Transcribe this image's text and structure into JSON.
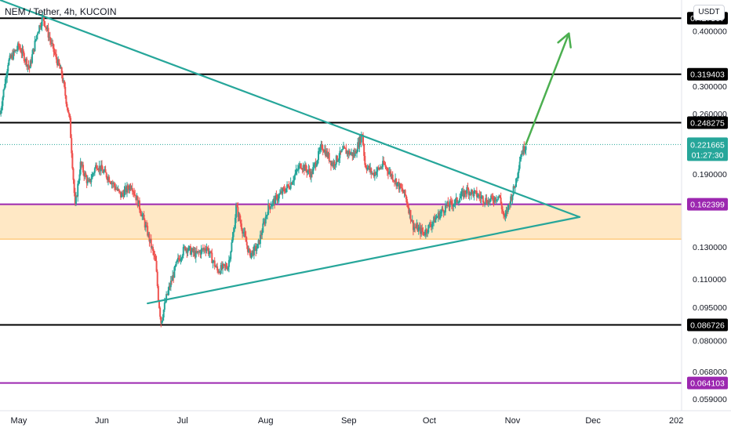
{
  "chart_data": {
    "type": "candlestick",
    "title": "NEM / Tether, 4h, KUCOIN",
    "currency": "USDT",
    "price_axis_labels": [
      "0.400000",
      "0.300000",
      "0.260000",
      "0.190000",
      "0.130000",
      "0.110000",
      "0.095000",
      "0.080000",
      "0.068000",
      "0.059000"
    ],
    "time_axis_labels": [
      {
        "label": "May",
        "date": "2021-05-01"
      },
      {
        "label": "Jun",
        "date": "2021-06-01"
      },
      {
        "label": "Jul",
        "date": "2021-07-01"
      },
      {
        "label": "Aug",
        "date": "2021-08-01"
      },
      {
        "label": "Sep",
        "date": "2021-09-01"
      },
      {
        "label": "Oct",
        "date": "2021-10-01"
      },
      {
        "label": "Nov",
        "date": "2021-11-01"
      },
      {
        "label": "Dec",
        "date": "2021-12-01"
      },
      {
        "label": "202",
        "date": "2022-01-01"
      }
    ],
    "x_range": [
      "2021-04-24",
      "2022-01-03"
    ],
    "y_range": [
      0.0555,
      0.47
    ],
    "y_scale": "log",
    "last_price": {
      "value": "0.221665",
      "countdown": "01:27:30",
      "color": "#26a69a"
    },
    "horizontal_levels": [
      {
        "value": "0.427507",
        "color": "#000000"
      },
      {
        "value": "0.319403",
        "color": "#000000"
      },
      {
        "value": "0.248275",
        "color": "#000000"
      },
      {
        "value": "0.162399",
        "color": "#9c27b0"
      },
      {
        "value": "0.086726",
        "color": "#000000"
      },
      {
        "value": "0.064103",
        "color": "#9c27b0"
      }
    ],
    "zone": {
      "top": 0.162399,
      "bottom": 0.1355,
      "fill": "#ffe0b2",
      "border": "#ffb74d"
    },
    "trendlines": [
      {
        "from": [
          "2021-04-24",
          0.47
        ],
        "to": [
          "2021-11-26",
          0.152
        ],
        "color": "#26a69a"
      },
      {
        "from": [
          "2021-06-18",
          0.097
        ],
        "to": [
          "2021-11-26",
          0.152
        ],
        "color": "#26a69a"
      }
    ],
    "arrow": {
      "from": [
        "2021-11-06",
        0.222
      ],
      "to": [
        "2021-11-22",
        0.395
      ],
      "color": "#4caf50"
    },
    "price_path": [
      [
        "2021-04-24",
        0.26
      ],
      [
        "2021-04-27",
        0.34
      ],
      [
        "2021-05-01",
        0.37
      ],
      [
        "2021-05-05",
        0.33
      ],
      [
        "2021-05-08",
        0.4
      ],
      [
        "2021-05-10",
        0.43
      ],
      [
        "2021-05-14",
        0.36
      ],
      [
        "2021-05-17",
        0.32
      ],
      [
        "2021-05-20",
        0.25
      ],
      [
        "2021-05-21",
        0.2
      ],
      [
        "2021-05-22",
        0.16
      ],
      [
        "2021-05-24",
        0.2
      ],
      [
        "2021-05-27",
        0.18
      ],
      [
        "2021-05-30",
        0.2
      ],
      [
        "2021-06-04",
        0.185
      ],
      [
        "2021-06-08",
        0.17
      ],
      [
        "2021-06-12",
        0.18
      ],
      [
        "2021-06-15",
        0.16
      ],
      [
        "2021-06-18",
        0.14
      ],
      [
        "2021-06-21",
        0.12
      ],
      [
        "2021-06-22",
        0.1
      ],
      [
        "2021-06-23",
        0.088
      ],
      [
        "2021-06-25",
        0.1
      ],
      [
        "2021-06-29",
        0.12
      ],
      [
        "2021-07-02",
        0.13
      ],
      [
        "2021-07-06",
        0.125
      ],
      [
        "2021-07-10",
        0.13
      ],
      [
        "2021-07-14",
        0.115
      ],
      [
        "2021-07-18",
        0.118
      ],
      [
        "2021-07-20",
        0.14
      ],
      [
        "2021-07-21",
        0.16
      ],
      [
        "2021-07-23",
        0.145
      ],
      [
        "2021-07-26",
        0.125
      ],
      [
        "2021-07-29",
        0.13
      ],
      [
        "2021-08-02",
        0.16
      ],
      [
        "2021-08-06",
        0.17
      ],
      [
        "2021-08-10",
        0.18
      ],
      [
        "2021-08-14",
        0.2
      ],
      [
        "2021-08-18",
        0.19
      ],
      [
        "2021-08-22",
        0.22
      ],
      [
        "2021-08-26",
        0.2
      ],
      [
        "2021-08-30",
        0.215
      ],
      [
        "2021-09-03",
        0.21
      ],
      [
        "2021-09-06",
        0.235
      ],
      [
        "2021-09-07",
        0.2
      ],
      [
        "2021-09-10",
        0.19
      ],
      [
        "2021-09-14",
        0.2
      ],
      [
        "2021-09-18",
        0.185
      ],
      [
        "2021-09-22",
        0.17
      ],
      [
        "2021-09-25",
        0.145
      ],
      [
        "2021-09-29",
        0.14
      ],
      [
        "2021-10-03",
        0.15
      ],
      [
        "2021-10-07",
        0.16
      ],
      [
        "2021-10-11",
        0.165
      ],
      [
        "2021-10-15",
        0.175
      ],
      [
        "2021-10-19",
        0.17
      ],
      [
        "2021-10-23",
        0.165
      ],
      [
        "2021-10-27",
        0.17
      ],
      [
        "2021-10-29",
        0.15
      ],
      [
        "2021-10-31",
        0.165
      ],
      [
        "2021-11-02",
        0.18
      ],
      [
        "2021-11-04",
        0.21
      ],
      [
        "2021-11-06",
        0.222
      ]
    ]
  }
}
